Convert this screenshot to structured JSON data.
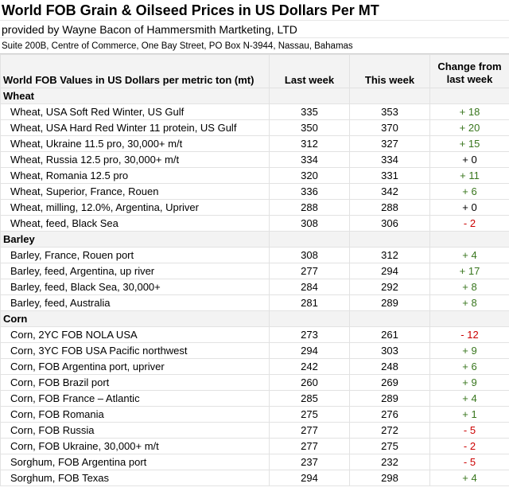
{
  "header": {
    "title": "World FOB Grain & Oilseed Prices in US Dollars Per MT",
    "subtitle": "provided by Wayne Bacon of Hammersmith Martketing, LTD",
    "address": "Suite 200B, Centre of Commerce, One Bay Street, PO Box N-3944, Nassau, Bahamas"
  },
  "table": {
    "columns": {
      "desc": "World FOB Values in US Dollars per metric ton (mt)",
      "last_week": "Last week",
      "this_week": "This week",
      "change_line1": "Change from",
      "change_line2": "last week"
    },
    "sections": [
      {
        "name": "Wheat",
        "rows": [
          {
            "label": "Wheat, USA Soft Red Winter, US Gulf",
            "last": "335",
            "this": "353",
            "change": "+ 18",
            "dir": "pos"
          },
          {
            "label": "Wheat, USA Hard Red Winter 11 protein, US Gulf",
            "last": "350",
            "this": "370",
            "change": "+ 20",
            "dir": "pos"
          },
          {
            "label": "Wheat, Ukraine 11.5 pro, 30,000+ m/t",
            "last": "312",
            "this": "327",
            "change": "+ 15",
            "dir": "pos"
          },
          {
            "label": "Wheat, Russia 12.5 pro, 30,000+ m/t",
            "last": "334",
            "this": "334",
            "change": "+ 0",
            "dir": "zero"
          },
          {
            "label": "Wheat, Romania 12.5 pro",
            "last": "320",
            "this": "331",
            "change": "+ 11",
            "dir": "pos"
          },
          {
            "label": "Wheat, Superior, France, Rouen",
            "last": "336",
            "this": "342",
            "change": "+ 6",
            "dir": "pos"
          },
          {
            "label": "Wheat, milling, 12.0%, Argentina, Upriver",
            "last": "288",
            "this": "288",
            "change": "+ 0",
            "dir": "zero"
          },
          {
            "label": "Wheat, feed, Black Sea",
            "last": "308",
            "this": "306",
            "change": "- 2",
            "dir": "neg"
          }
        ]
      },
      {
        "name": "Barley",
        "rows": [
          {
            "label": "Barley, France, Rouen port",
            "last": "308",
            "this": "312",
            "change": "+ 4",
            "dir": "pos"
          },
          {
            "label": "Barley, feed, Argentina, up river",
            "last": "277",
            "this": "294",
            "change": "+ 17",
            "dir": "pos"
          },
          {
            "label": "Barley, feed, Black Sea, 30,000+",
            "last": "284",
            "this": "292",
            "change": "+ 8",
            "dir": "pos"
          },
          {
            "label": "Barley, feed, Australia",
            "last": "281",
            "this": "289",
            "change": "+ 8",
            "dir": "pos"
          }
        ]
      },
      {
        "name": "Corn",
        "rows": [
          {
            "label": "Corn, 2YC FOB NOLA USA",
            "last": "273",
            "this": "261",
            "change": "- 12",
            "dir": "neg"
          },
          {
            "label": "Corn, 3YC FOB USA Pacific northwest",
            "last": "294",
            "this": "303",
            "change": "+ 9",
            "dir": "pos"
          },
          {
            "label": "Corn, FOB Argentina port, upriver",
            "last": "242",
            "this": "248",
            "change": "+ 6",
            "dir": "pos"
          },
          {
            "label": "Corn, FOB Brazil port",
            "last": "260",
            "this": "269",
            "change": "+ 9",
            "dir": "pos"
          },
          {
            "label": "Corn, FOB France – Atlantic",
            "last": "285",
            "this": "289",
            "change": "+ 4",
            "dir": "pos"
          },
          {
            "label": "Corn, FOB Romania",
            "last": "275",
            "this": "276",
            "change": "+ 1",
            "dir": "pos"
          },
          {
            "label": "Corn, FOB Russia",
            "last": "277",
            "this": "272",
            "change": "- 5",
            "dir": "neg"
          },
          {
            "label": "Corn, FOB Ukraine, 30,000+ m/t",
            "last": "277",
            "this": "275",
            "change": "- 2",
            "dir": "neg"
          },
          {
            "label": "Sorghum, FOB Argentina port",
            "last": "237",
            "this": "232",
            "change": "- 5",
            "dir": "neg"
          },
          {
            "label": "Sorghum, FOB Texas",
            "last": "294",
            "this": "298",
            "change": "+ 4",
            "dir": "pos"
          }
        ]
      }
    ],
    "colors": {
      "positive": "#38761d",
      "negative": "#cc0000",
      "neutral": "#000000",
      "header_bg": "#f3f3f3"
    }
  }
}
